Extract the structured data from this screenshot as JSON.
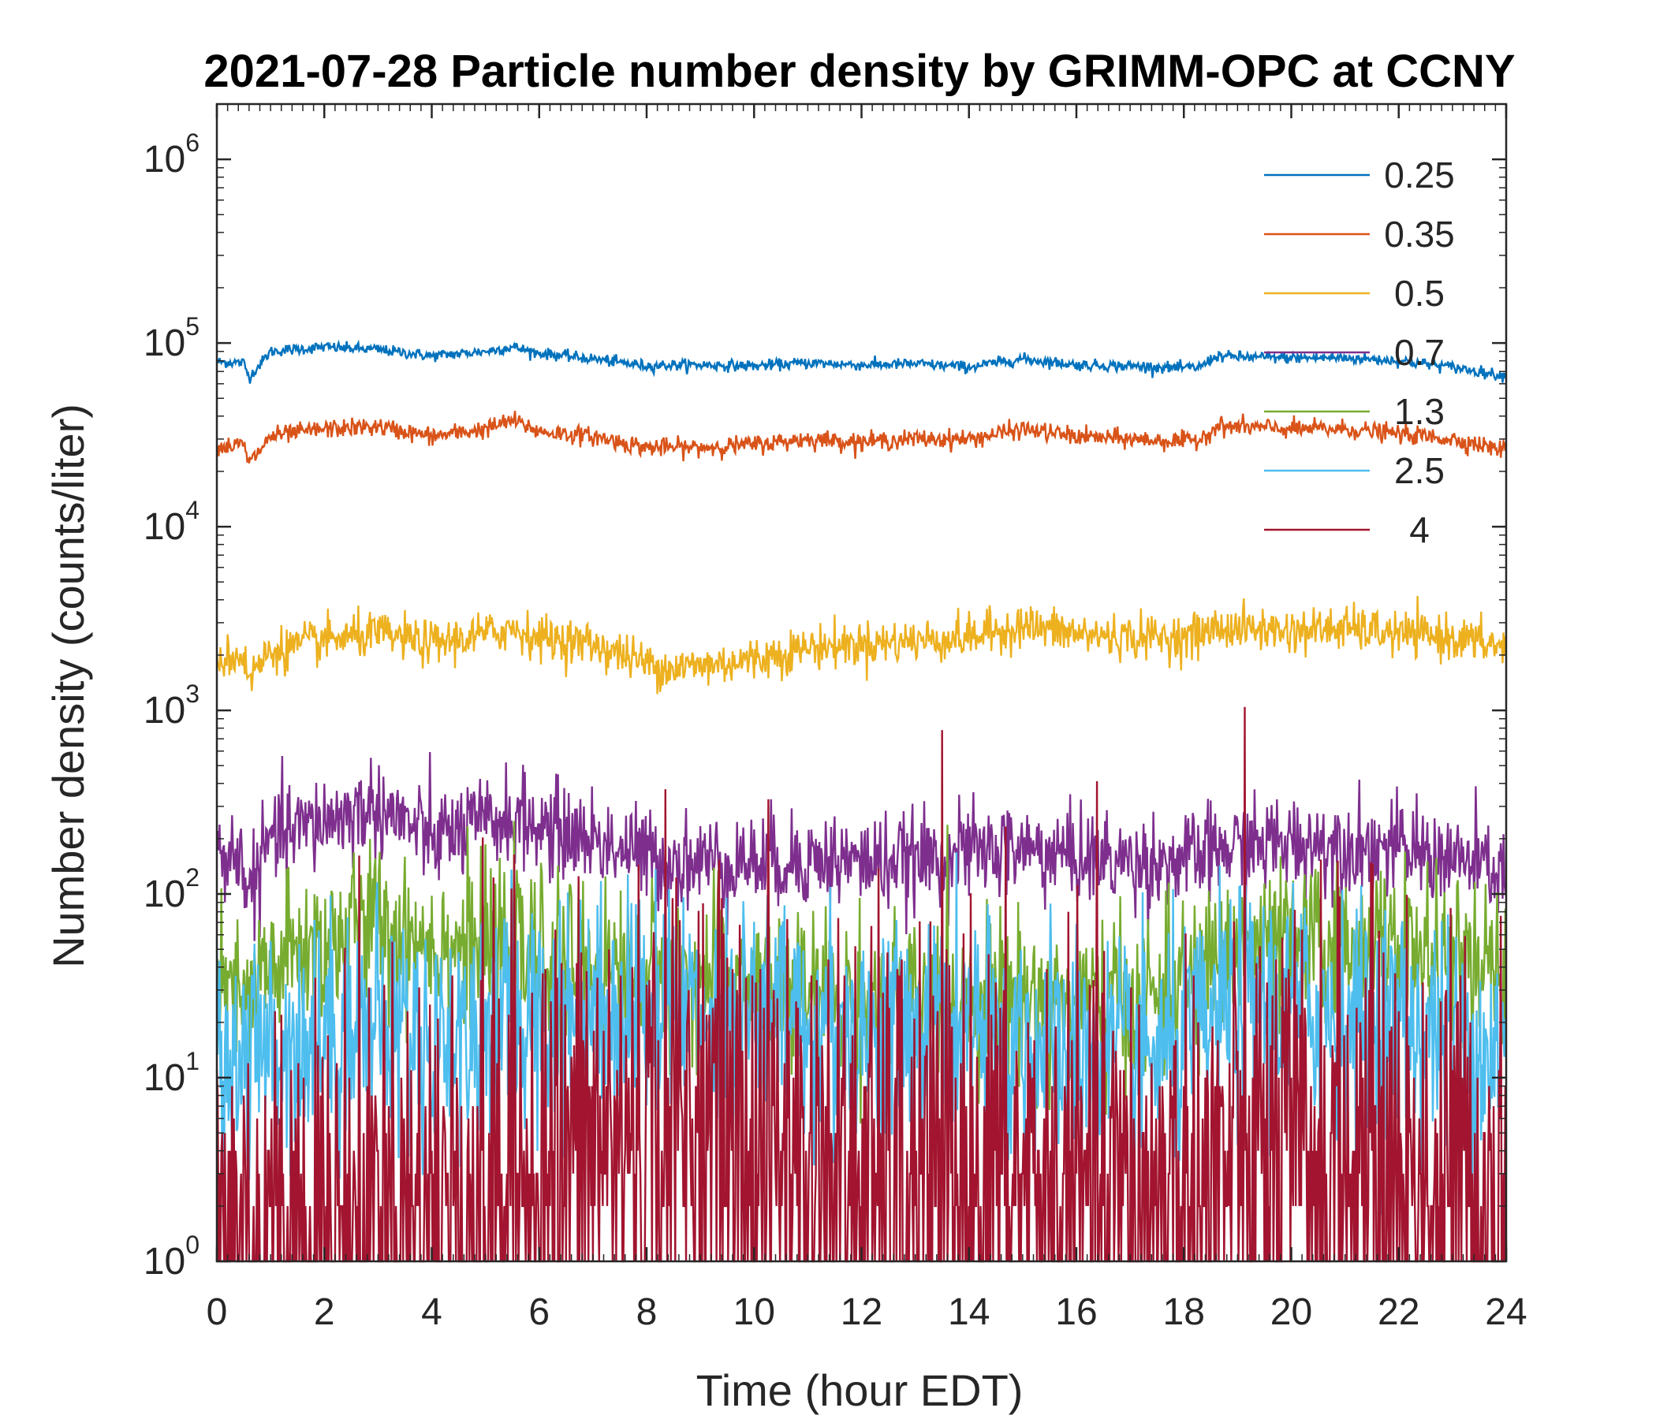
{
  "chart_data": {
    "type": "line",
    "title": "2021-07-28 Particle number density by GRIMM-OPC at CCNY",
    "xlabel": "Time (hour EDT)",
    "ylabel": "Number density (counts/liter)",
    "xlim": [
      0,
      24
    ],
    "ylim": [
      1,
      2000000
    ],
    "yscale": "log",
    "grid": false,
    "legend_position": "top-right",
    "x_ticks": [
      0,
      2,
      4,
      6,
      8,
      10,
      12,
      14,
      16,
      18,
      20,
      22,
      24
    ],
    "x_tick_labels": [
      "0",
      "2",
      "4",
      "6",
      "8",
      "10",
      "12",
      "14",
      "16",
      "18",
      "20",
      "22",
      "24"
    ],
    "y_ticks": [
      1,
      10,
      100,
      1000,
      10000,
      100000,
      1000000
    ],
    "y_tick_labels": [
      {
        "base": "10",
        "exp": "0"
      },
      {
        "base": "10",
        "exp": "1"
      },
      {
        "base": "10",
        "exp": "2"
      },
      {
        "base": "10",
        "exp": "3"
      },
      {
        "base": "10",
        "exp": "4"
      },
      {
        "base": "10",
        "exp": "5"
      },
      {
        "base": "10",
        "exp": "6"
      }
    ],
    "x": [
      0,
      0.5,
      0.6,
      1,
      2,
      3,
      4,
      5,
      5.5,
      6,
      7,
      8,
      8.5,
      9,
      10,
      11,
      12,
      13,
      14,
      15,
      16,
      17,
      18,
      18.3,
      18.6,
      19,
      20,
      21,
      22,
      23,
      24
    ],
    "series": [
      {
        "name": "0.25",
        "color": "#0072BD",
        "noise": 0.015,
        "values": [
          79000,
          78000,
          65000,
          90000,
          95000,
          92000,
          85000,
          90000,
          95000,
          88000,
          82000,
          75000,
          76000,
          76000,
          75000,
          78000,
          76000,
          77000,
          74000,
          82000,
          76000,
          75000,
          73000,
          74000,
          85000,
          84000,
          83000,
          83000,
          80000,
          74000,
          66000
        ]
      },
      {
        "name": "0.35",
        "color": "#D95319",
        "noise": 0.025,
        "values": [
          27000,
          28000,
          22000,
          31000,
          34000,
          35000,
          31000,
          34000,
          38000,
          33000,
          31000,
          27000,
          27000,
          27000,
          28000,
          30000,
          29000,
          30000,
          30000,
          34000,
          31000,
          30000,
          29000,
          30000,
          35000,
          35000,
          34000,
          34000,
          32000,
          30000,
          26000
        ]
      },
      {
        "name": "0.5",
        "color": "#EDB120",
        "noise": 0.06,
        "values": [
          1900,
          2000,
          1500,
          2100,
          2400,
          2600,
          2300,
          2600,
          2800,
          2500,
          2300,
          1800,
          1700,
          1750,
          1900,
          2200,
          2300,
          2400,
          2500,
          2900,
          2600,
          2500,
          2500,
          2600,
          2800,
          2800,
          2700,
          2800,
          2600,
          2500,
          2200
        ]
      },
      {
        "name": "0.7",
        "color": "#7E2F8E",
        "noise": 0.13,
        "values": [
          170,
          150,
          100,
          200,
          250,
          300,
          200,
          240,
          260,
          230,
          200,
          160,
          150,
          150,
          150,
          155,
          150,
          150,
          170,
          175,
          160,
          150,
          150,
          160,
          170,
          180,
          190,
          190,
          175,
          155,
          130
        ]
      },
      {
        "name": "1.3",
        "color": "#77AC30",
        "noise": 0.22,
        "values": [
          30,
          25,
          25,
          40,
          55,
          70,
          55,
          50,
          50,
          45,
          40,
          38,
          35,
          35,
          32,
          28,
          26,
          26,
          28,
          28,
          26,
          26,
          30,
          35,
          45,
          50,
          50,
          55,
          50,
          40,
          35
        ]
      },
      {
        "name": "2.5",
        "color": "#4DBEEE",
        "noise": 0.32,
        "values": [
          12,
          14,
          12,
          15,
          18,
          20,
          16,
          18,
          22,
          22,
          25,
          24,
          24,
          24,
          22,
          20,
          18,
          18,
          18,
          16,
          14,
          12,
          14,
          16,
          20,
          25,
          25,
          22,
          20,
          16,
          14
        ]
      },
      {
        "name": "4",
        "color": "#A2142F",
        "noise": 0.7,
        "values": [
          1.5,
          1.5,
          1.2,
          1.5,
          1.5,
          1.8,
          2,
          2.5,
          3,
          3,
          4,
          5,
          5.5,
          5.5,
          4.5,
          3,
          2.5,
          2.5,
          2.5,
          2.5,
          2,
          2,
          2,
          2.2,
          3,
          3.2,
          3.5,
          3.2,
          3,
          2.5,
          2
        ]
      }
    ]
  }
}
